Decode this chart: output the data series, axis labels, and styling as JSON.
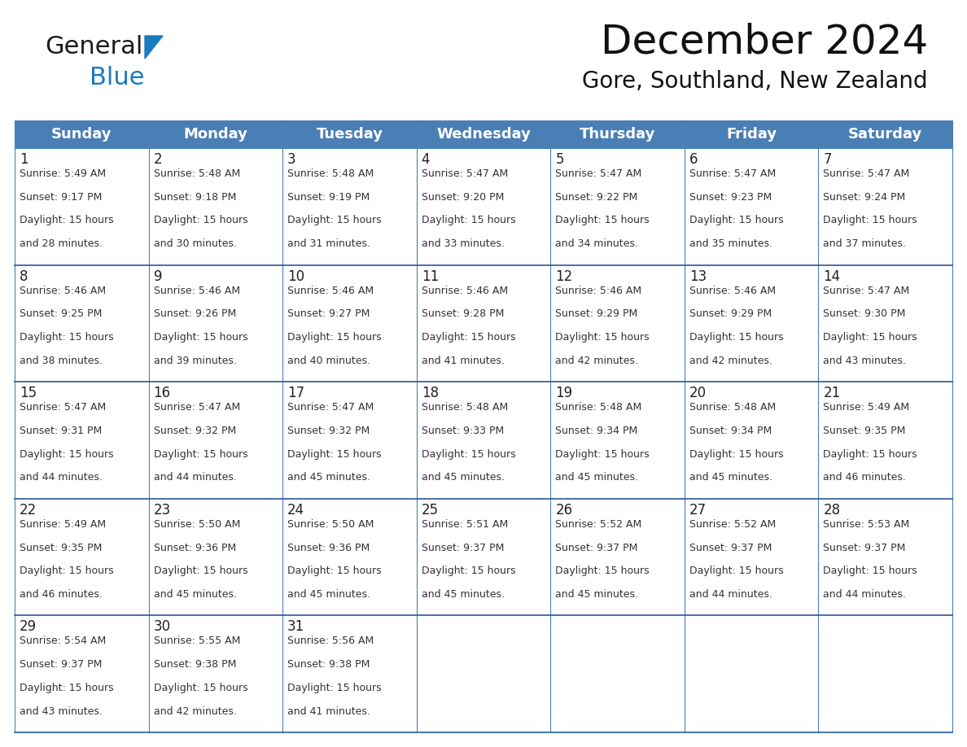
{
  "title": "December 2024",
  "subtitle": "Gore, Southland, New Zealand",
  "header_bg": "#4A7FB5",
  "header_text": "#FFFFFF",
  "border_color": "#4A7FB5",
  "row_line_color": "#2F5496",
  "day_names": [
    "Sunday",
    "Monday",
    "Tuesday",
    "Wednesday",
    "Thursday",
    "Friday",
    "Saturday"
  ],
  "days": [
    {
      "day": 1,
      "col": 0,
      "row": 0,
      "sunrise": "5:49 AM",
      "sunset": "9:17 PM",
      "daylight": "15 hours and 28 minutes."
    },
    {
      "day": 2,
      "col": 1,
      "row": 0,
      "sunrise": "5:48 AM",
      "sunset": "9:18 PM",
      "daylight": "15 hours and 30 minutes."
    },
    {
      "day": 3,
      "col": 2,
      "row": 0,
      "sunrise": "5:48 AM",
      "sunset": "9:19 PM",
      "daylight": "15 hours and 31 minutes."
    },
    {
      "day": 4,
      "col": 3,
      "row": 0,
      "sunrise": "5:47 AM",
      "sunset": "9:20 PM",
      "daylight": "15 hours and 33 minutes."
    },
    {
      "day": 5,
      "col": 4,
      "row": 0,
      "sunrise": "5:47 AM",
      "sunset": "9:22 PM",
      "daylight": "15 hours and 34 minutes."
    },
    {
      "day": 6,
      "col": 5,
      "row": 0,
      "sunrise": "5:47 AM",
      "sunset": "9:23 PM",
      "daylight": "15 hours and 35 minutes."
    },
    {
      "day": 7,
      "col": 6,
      "row": 0,
      "sunrise": "5:47 AM",
      "sunset": "9:24 PM",
      "daylight": "15 hours and 37 minutes."
    },
    {
      "day": 8,
      "col": 0,
      "row": 1,
      "sunrise": "5:46 AM",
      "sunset": "9:25 PM",
      "daylight": "15 hours and 38 minutes."
    },
    {
      "day": 9,
      "col": 1,
      "row": 1,
      "sunrise": "5:46 AM",
      "sunset": "9:26 PM",
      "daylight": "15 hours and 39 minutes."
    },
    {
      "day": 10,
      "col": 2,
      "row": 1,
      "sunrise": "5:46 AM",
      "sunset": "9:27 PM",
      "daylight": "15 hours and 40 minutes."
    },
    {
      "day": 11,
      "col": 3,
      "row": 1,
      "sunrise": "5:46 AM",
      "sunset": "9:28 PM",
      "daylight": "15 hours and 41 minutes."
    },
    {
      "day": 12,
      "col": 4,
      "row": 1,
      "sunrise": "5:46 AM",
      "sunset": "9:29 PM",
      "daylight": "15 hours and 42 minutes."
    },
    {
      "day": 13,
      "col": 5,
      "row": 1,
      "sunrise": "5:46 AM",
      "sunset": "9:29 PM",
      "daylight": "15 hours and 42 minutes."
    },
    {
      "day": 14,
      "col": 6,
      "row": 1,
      "sunrise": "5:47 AM",
      "sunset": "9:30 PM",
      "daylight": "15 hours and 43 minutes."
    },
    {
      "day": 15,
      "col": 0,
      "row": 2,
      "sunrise": "5:47 AM",
      "sunset": "9:31 PM",
      "daylight": "15 hours and 44 minutes."
    },
    {
      "day": 16,
      "col": 1,
      "row": 2,
      "sunrise": "5:47 AM",
      "sunset": "9:32 PM",
      "daylight": "15 hours and 44 minutes."
    },
    {
      "day": 17,
      "col": 2,
      "row": 2,
      "sunrise": "5:47 AM",
      "sunset": "9:32 PM",
      "daylight": "15 hours and 45 minutes."
    },
    {
      "day": 18,
      "col": 3,
      "row": 2,
      "sunrise": "5:48 AM",
      "sunset": "9:33 PM",
      "daylight": "15 hours and 45 minutes."
    },
    {
      "day": 19,
      "col": 4,
      "row": 2,
      "sunrise": "5:48 AM",
      "sunset": "9:34 PM",
      "daylight": "15 hours and 45 minutes."
    },
    {
      "day": 20,
      "col": 5,
      "row": 2,
      "sunrise": "5:48 AM",
      "sunset": "9:34 PM",
      "daylight": "15 hours and 45 minutes."
    },
    {
      "day": 21,
      "col": 6,
      "row": 2,
      "sunrise": "5:49 AM",
      "sunset": "9:35 PM",
      "daylight": "15 hours and 46 minutes."
    },
    {
      "day": 22,
      "col": 0,
      "row": 3,
      "sunrise": "5:49 AM",
      "sunset": "9:35 PM",
      "daylight": "15 hours and 46 minutes."
    },
    {
      "day": 23,
      "col": 1,
      "row": 3,
      "sunrise": "5:50 AM",
      "sunset": "9:36 PM",
      "daylight": "15 hours and 45 minutes."
    },
    {
      "day": 24,
      "col": 2,
      "row": 3,
      "sunrise": "5:50 AM",
      "sunset": "9:36 PM",
      "daylight": "15 hours and 45 minutes."
    },
    {
      "day": 25,
      "col": 3,
      "row": 3,
      "sunrise": "5:51 AM",
      "sunset": "9:37 PM",
      "daylight": "15 hours and 45 minutes."
    },
    {
      "day": 26,
      "col": 4,
      "row": 3,
      "sunrise": "5:52 AM",
      "sunset": "9:37 PM",
      "daylight": "15 hours and 45 minutes."
    },
    {
      "day": 27,
      "col": 5,
      "row": 3,
      "sunrise": "5:52 AM",
      "sunset": "9:37 PM",
      "daylight": "15 hours and 44 minutes."
    },
    {
      "day": 28,
      "col": 6,
      "row": 3,
      "sunrise": "5:53 AM",
      "sunset": "9:37 PM",
      "daylight": "15 hours and 44 minutes."
    },
    {
      "day": 29,
      "col": 0,
      "row": 4,
      "sunrise": "5:54 AM",
      "sunset": "9:37 PM",
      "daylight": "15 hours and 43 minutes."
    },
    {
      "day": 30,
      "col": 1,
      "row": 4,
      "sunrise": "5:55 AM",
      "sunset": "9:38 PM",
      "daylight": "15 hours and 42 minutes."
    },
    {
      "day": 31,
      "col": 2,
      "row": 4,
      "sunrise": "5:56 AM",
      "sunset": "9:38 PM",
      "daylight": "15 hours and 41 minutes."
    }
  ],
  "num_rows": 5,
  "logo_color_general": "#1a1a1a",
  "logo_color_blue": "#1a7abf",
  "logo_triangle_color": "#1a7abf",
  "title_fontsize": 36,
  "subtitle_fontsize": 20,
  "day_name_fontsize": 13,
  "day_num_fontsize": 12,
  "cell_text_fontsize": 9
}
